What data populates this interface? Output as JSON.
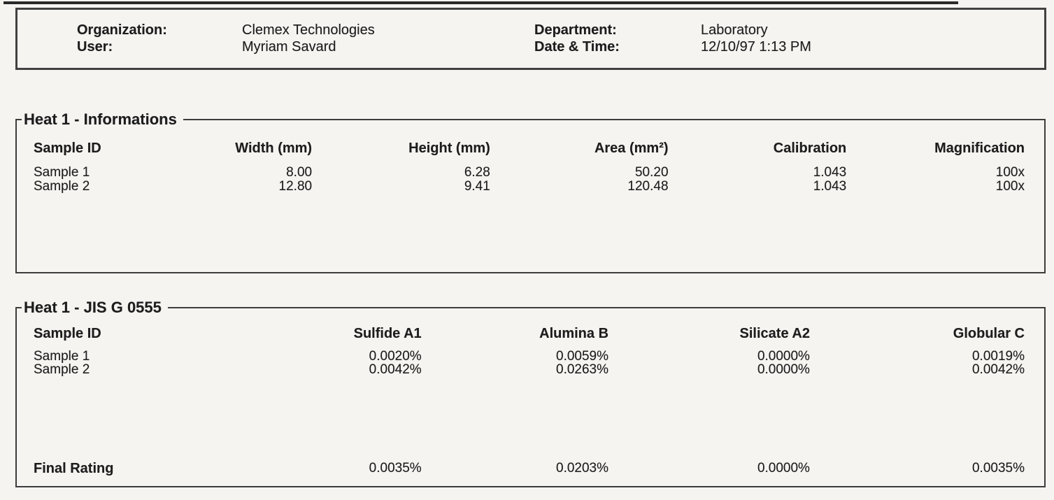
{
  "colors": {
    "paper": "#f5f4f1",
    "ink": "#1d1d1d",
    "border": "#3c3c3c"
  },
  "header": {
    "rows": [
      {
        "label1": "Organization:",
        "value1": "Clemex Technologies",
        "label2": "Department:",
        "value2": "Laboratory"
      },
      {
        "label1": "User:",
        "value1": "Myriam Savard",
        "label2": "Date & Time:",
        "value2": "12/10/97 1:13 PM"
      }
    ]
  },
  "sections": [
    {
      "title": "Heat 1 - Informations",
      "columns": [
        "Sample ID",
        "Width (mm)",
        "Height (mm)",
        "Area (mm²)",
        "Calibration",
        "Magnification"
      ],
      "rows": [
        [
          "Sample 1",
          "8.00",
          "6.28",
          "50.20",
          "1.043",
          "100x"
        ],
        [
          "Sample 2",
          "12.80",
          "9.41",
          "120.48",
          "1.043",
          "100x"
        ]
      ]
    },
    {
      "title": "Heat 1 - JIS G 0555",
      "columns": [
        "Sample ID",
        "Sulfide A1",
        "Alumina B",
        "Silicate A2",
        "Globular C"
      ],
      "rows": [
        [
          "Sample 1",
          "0.0020%",
          "0.0059%",
          "0.0000%",
          "0.0019%"
        ],
        [
          "Sample 2",
          "0.0042%",
          "0.0263%",
          "0.0000%",
          "0.0042%"
        ]
      ],
      "footer": [
        "Final Rating",
        "0.0035%",
        "0.0203%",
        "0.0000%",
        "0.0035%"
      ]
    }
  ]
}
